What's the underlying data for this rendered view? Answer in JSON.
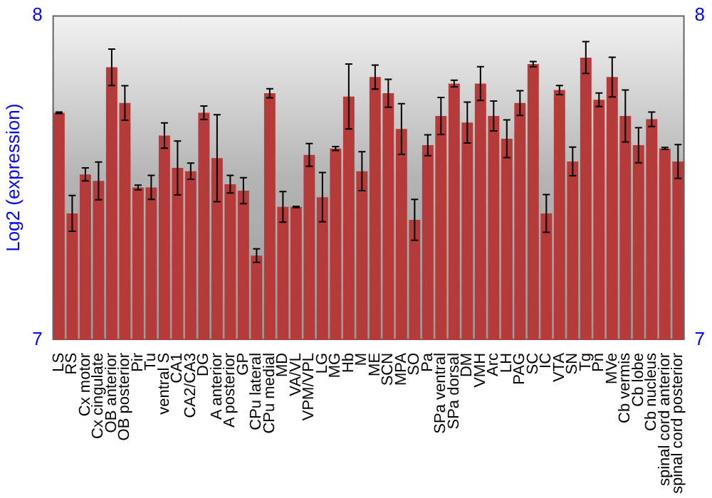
{
  "chart_data": {
    "type": "bar",
    "ylabel": "Log2 (expression)",
    "categories": [
      "LS",
      "RS",
      "Cx motor",
      "Cx cingulate",
      "OB anterior",
      "OB posterior",
      "Pir",
      "Tu",
      "ventral S",
      "CA1",
      "CA2/CA3",
      "DG",
      "A anterior",
      "A posterior",
      "GP",
      "CPu lateral",
      "CPu medial",
      "MD",
      "VA/VL",
      "VPM/VPL",
      "LG",
      "MG",
      "Hb",
      "M",
      "ME",
      "SCN",
      "MPA",
      "SO",
      "Pa",
      "SPa ventral",
      "SPa dorsal",
      "DM",
      "VMH",
      "Arc",
      "LH",
      "PAG",
      "SC",
      "IC",
      "VTA",
      "SN",
      "Tg",
      "Pn",
      "MVe",
      "Cb vermis",
      "Cb lobe",
      "Cb nucleus",
      "spinal cord anterior",
      "spinal cord posterior"
    ],
    "values": [
      7.7,
      7.39,
      7.51,
      7.49,
      7.84,
      7.73,
      7.47,
      7.47,
      7.63,
      7.53,
      7.52,
      7.7,
      7.56,
      7.48,
      7.46,
      7.26,
      7.76,
      7.41,
      7.41,
      7.57,
      7.44,
      7.59,
      7.75,
      7.52,
      7.81,
      7.76,
      7.65,
      7.37,
      7.6,
      7.69,
      7.79,
      7.67,
      7.79,
      7.69,
      7.62,
      7.73,
      7.85,
      7.39,
      7.77,
      7.55,
      7.87,
      7.74,
      7.81,
      7.69,
      7.6,
      7.68,
      7.59,
      7.55
    ],
    "errors": [
      0.002,
      0.055,
      0.02,
      0.058,
      0.056,
      0.053,
      0.007,
      0.037,
      0.039,
      0.083,
      0.025,
      0.021,
      0.134,
      0.027,
      0.04,
      0.021,
      0.014,
      0.047,
      0.002,
      0.035,
      0.076,
      0.006,
      0.1,
      0.06,
      0.037,
      0.043,
      0.078,
      0.063,
      0.032,
      0.057,
      0.01,
      0.063,
      0.052,
      0.046,
      0.058,
      0.038,
      0.008,
      0.058,
      0.014,
      0.044,
      0.049,
      0.021,
      0.061,
      0.08,
      0.054,
      0.022,
      0.003,
      0.052
    ],
    "color": "#b53b3b",
    "ylim": [
      7,
      8
    ],
    "yticks": [
      7,
      8
    ],
    "y2lim": [
      7,
      8
    ],
    "y2ticks": [
      7,
      8
    ],
    "grid": false,
    "legend": false
  }
}
